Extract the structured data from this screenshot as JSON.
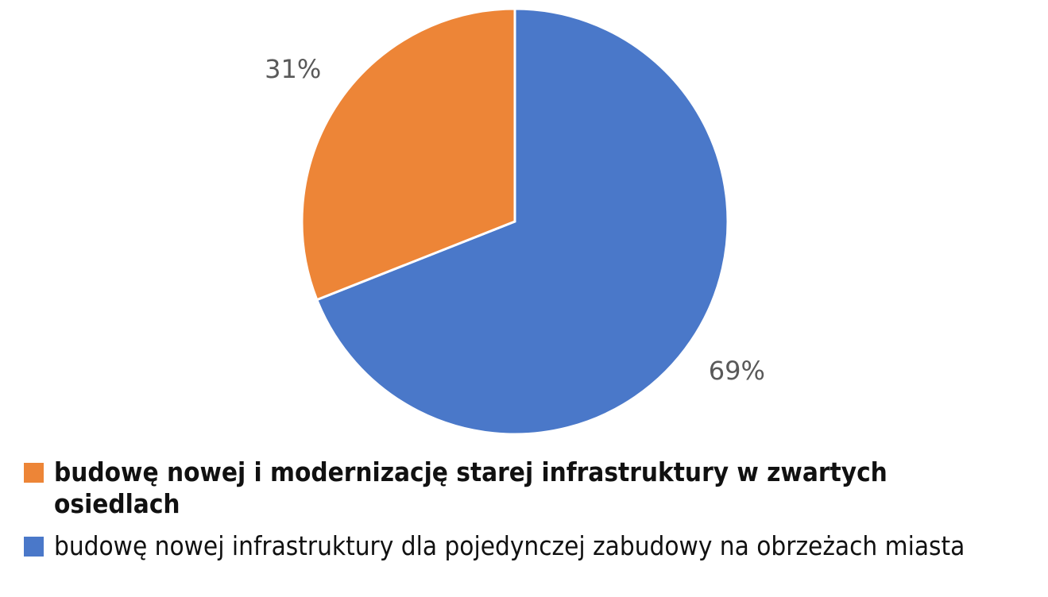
{
  "chart_data": {
    "type": "pie",
    "categories": [
      "budowę nowej i modernizację starej infrastruktury w zwartych osiedlach",
      "budowę nowej infrastruktury dla pojedynczej zabudowy na obrzeżach miasta"
    ],
    "values": [
      31,
      69
    ],
    "value_labels": [
      "31%",
      "69%"
    ],
    "colors": [
      "#ed8537",
      "#4a78c9"
    ]
  }
}
